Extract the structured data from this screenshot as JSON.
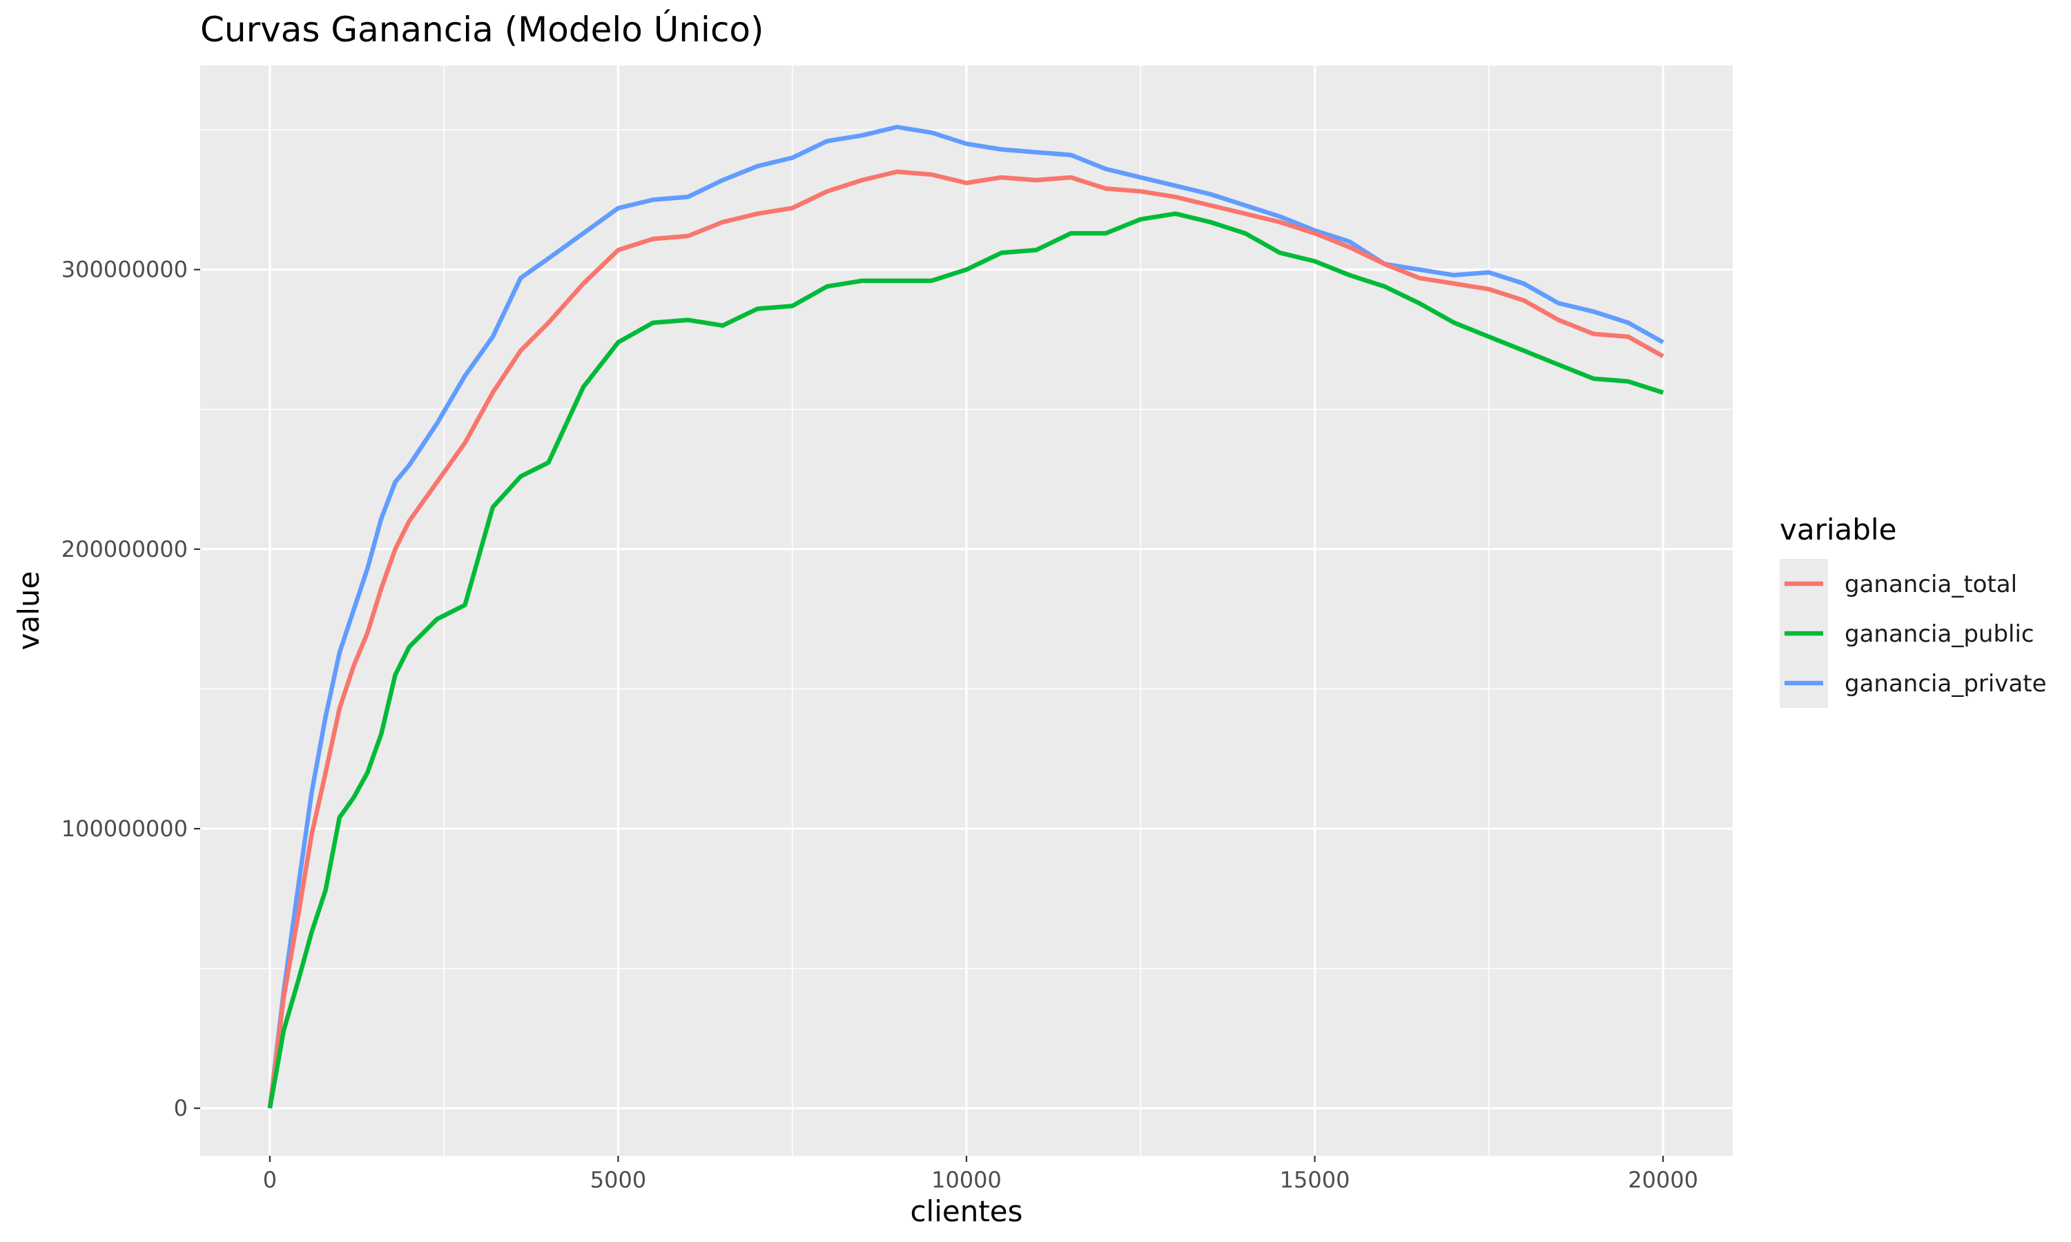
{
  "chart_data": {
    "type": "line",
    "title": "Curvas Ganancia (Modelo Único)",
    "xlabel": "clientes",
    "ylabel": "value",
    "xlim": [
      -1000,
      21000
    ],
    "ylim": [
      -17000000,
      373000000
    ],
    "x_ticks": [
      0,
      5000,
      10000,
      15000,
      20000
    ],
    "x_tick_labels": [
      "0",
      "5000",
      "10000",
      "15000",
      "20000"
    ],
    "y_ticks": [
      0,
      100000000,
      200000000,
      300000000
    ],
    "y_tick_labels": [
      "0",
      "100000000",
      "200000000",
      "300000000"
    ],
    "grid": true,
    "panel_background": "#ebebeb",
    "legend": {
      "title": "variable",
      "position": "right"
    },
    "x": [
      0,
      200,
      400,
      600,
      800,
      1000,
      1200,
      1400,
      1600,
      1800,
      2000,
      2400,
      2800,
      3200,
      3600,
      4000,
      4500,
      5000,
      5500,
      6000,
      6500,
      7000,
      7500,
      8000,
      8500,
      9000,
      9500,
      10000,
      10500,
      11000,
      11500,
      12000,
      12500,
      13000,
      13500,
      14000,
      14500,
      15000,
      15500,
      16000,
      16500,
      17000,
      17500,
      18000,
      18500,
      19000,
      19500,
      20000
    ],
    "series": [
      {
        "name": "ganancia_total",
        "color": "#f8766d",
        "values": [
          0,
          40000000,
          68000000,
          98000000,
          120000000,
          143000000,
          158000000,
          170000000,
          186000000,
          200000000,
          210000000,
          224000000,
          238000000,
          256000000,
          271000000,
          281000000,
          295000000,
          307000000,
          311000000,
          312000000,
          317000000,
          320000000,
          322000000,
          328000000,
          332000000,
          335000000,
          334000000,
          331000000,
          333000000,
          332000000,
          333000000,
          329000000,
          328000000,
          326000000,
          323000000,
          320000000,
          317000000,
          313000000,
          308000000,
          302000000,
          297000000,
          295000000,
          293000000,
          289000000,
          282000000,
          277000000,
          276000000,
          269000000
        ]
      },
      {
        "name": "ganancia_public",
        "color": "#00ba38",
        "values": [
          0,
          28000000,
          45000000,
          63000000,
          78000000,
          104000000,
          111000000,
          120000000,
          134000000,
          155000000,
          165000000,
          175000000,
          180000000,
          215000000,
          226000000,
          231000000,
          258000000,
          274000000,
          281000000,
          282000000,
          280000000,
          286000000,
          287000000,
          294000000,
          296000000,
          296000000,
          296000000,
          300000000,
          306000000,
          307000000,
          313000000,
          313000000,
          318000000,
          320000000,
          317000000,
          313000000,
          306000000,
          303000000,
          298000000,
          294000000,
          288000000,
          281000000,
          276000000,
          271000000,
          266000000,
          261000000,
          260000000,
          256000000
        ]
      },
      {
        "name": "ganancia_private",
        "color": "#619cff",
        "values": [
          0,
          42000000,
          78000000,
          113000000,
          140000000,
          163000000,
          178000000,
          193000000,
          211000000,
          224000000,
          230000000,
          245000000,
          262000000,
          276000000,
          297000000,
          304000000,
          313000000,
          322000000,
          325000000,
          326000000,
          332000000,
          337000000,
          340000000,
          346000000,
          348000000,
          351000000,
          349000000,
          345000000,
          343000000,
          342000000,
          341000000,
          336000000,
          333000000,
          330000000,
          327000000,
          323000000,
          319000000,
          314000000,
          310000000,
          302000000,
          300000000,
          298000000,
          299000000,
          295000000,
          288000000,
          285000000,
          281000000,
          274000000
        ]
      }
    ]
  }
}
